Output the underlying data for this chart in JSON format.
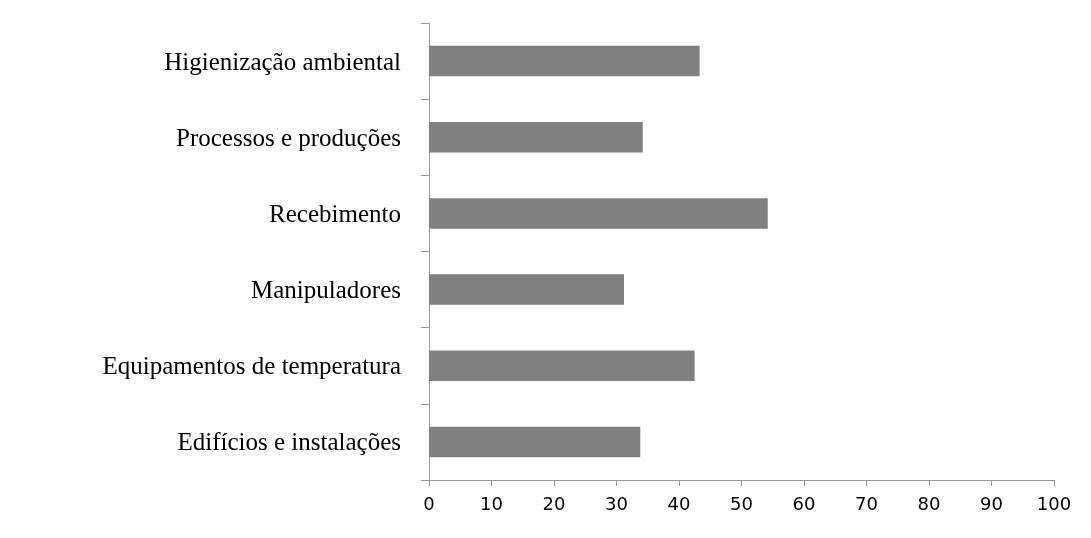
{
  "chart_data": {
    "type": "bar",
    "orientation": "horizontal",
    "categories": [
      "Higienização ambiental",
      "Processos e produções",
      "Recebimento",
      "Manipuladores",
      "Equipamentos de temperatura",
      "Edifícios e instalações"
    ],
    "values": [
      43.3,
      34.2,
      54.2,
      31.2,
      42.5,
      33.8
    ],
    "color": "#808080",
    "xlim": [
      0,
      100
    ],
    "xticks": [
      0,
      10,
      20,
      30,
      40,
      50,
      60,
      70,
      80,
      90,
      100
    ],
    "grid": false
  }
}
